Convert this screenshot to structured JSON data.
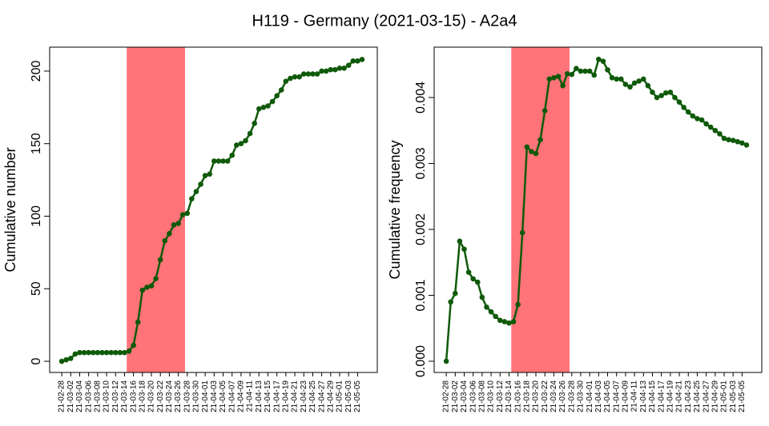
{
  "title": "H119 - Germany (2021-03-15) - A2a4",
  "chart_data": [
    {
      "type": "line",
      "ylabel": "Cumulative number",
      "color": "#0f5a0a",
      "highlight": [
        14.5,
        27.5
      ],
      "highlight_color": "#ff7379",
      "categories": [
        "21-02-28",
        null,
        "21-03-02",
        null,
        "21-03-04",
        null,
        "21-03-06",
        null,
        "21-03-08",
        null,
        "21-03-10",
        null,
        "21-03-12",
        null,
        "21-03-14",
        null,
        "21-03-16",
        null,
        "21-03-18",
        null,
        "21-03-20",
        null,
        "21-03-22",
        null,
        "21-03-24",
        null,
        "21-03-26",
        null,
        "21-03-28",
        null,
        "21-03-30",
        null,
        "21-04-01",
        null,
        "21-04-03",
        null,
        "21-04-05",
        null,
        "21-04-07",
        null,
        "21-04-09",
        null,
        "21-04-11",
        null,
        "21-04-13",
        null,
        "21-04-15",
        null,
        "21-04-17",
        null,
        "21-04-19",
        null,
        "21-04-21",
        null,
        "21-04-23",
        null,
        "21-04-25",
        null,
        "21-04-27",
        null,
        "21-04-29",
        null,
        "21-05-01",
        null,
        "21-05-03",
        null,
        "21-05-05",
        null
      ],
      "values": [
        0,
        1,
        2,
        5,
        6,
        6,
        6,
        6,
        6,
        6,
        6,
        6,
        6,
        6,
        6,
        7,
        11,
        27,
        49,
        51,
        52,
        57,
        70,
        83,
        88,
        94,
        95,
        101,
        102,
        112,
        117,
        122,
        128,
        129,
        138,
        138,
        138,
        138,
        142,
        149,
        150,
        152,
        157,
        164,
        174,
        175,
        176,
        179,
        183,
        187,
        193,
        195,
        196,
        196,
        198,
        198,
        198,
        198,
        200,
        200,
        201,
        201,
        202,
        202,
        204,
        207,
        207,
        208
      ],
      "xlim": [
        -2.7,
        70.4
      ],
      "ylim": [
        -7.7,
        216.5
      ],
      "yticks": [
        0,
        50,
        100,
        150,
        200
      ]
    },
    {
      "type": "line",
      "ylabel": "Cumulative frequency",
      "color": "#0f5a0a",
      "highlight": [
        14.5,
        27.5
      ],
      "highlight_color": "#ff7379",
      "categories": [
        "21-02-28",
        null,
        "21-03-02",
        null,
        "21-03-04",
        null,
        "21-03-06",
        null,
        "21-03-08",
        null,
        "21-03-10",
        null,
        "21-03-12",
        null,
        "21-03-14",
        null,
        "21-03-16",
        null,
        "21-03-18",
        null,
        "21-03-20",
        null,
        "21-03-22",
        null,
        "21-03-24",
        null,
        "21-03-26",
        null,
        "21-03-28",
        null,
        "21-03-30",
        null,
        "21-04-01",
        null,
        "21-04-03",
        null,
        "21-04-05",
        null,
        "21-04-07",
        null,
        "21-04-09",
        null,
        "21-04-11",
        null,
        "21-04-13",
        null,
        "21-04-15",
        null,
        "21-04-17",
        null,
        "21-04-19",
        null,
        "21-04-21",
        null,
        "21-04-23",
        null,
        "21-04-25",
        null,
        "21-04-27",
        null,
        "21-04-29",
        null,
        "21-05-01",
        null,
        "21-05-03",
        null,
        "21-05-05",
        null
      ],
      "values": [
        0,
        0.0009,
        0.00103,
        0.00182,
        0.0017,
        0.00135,
        0.00125,
        0.0012,
        0.00097,
        0.00082,
        0.00075,
        0.00068,
        0.00062,
        0.0006,
        0.00058,
        0.0006,
        0.00086,
        0.00195,
        0.00325,
        0.00318,
        0.00315,
        0.00336,
        0.0038,
        0.00428,
        0.0043,
        0.00432,
        0.00418,
        0.00436,
        0.00435,
        0.00444,
        0.0044,
        0.0044,
        0.0044,
        0.00434,
        0.00458,
        0.00455,
        0.00442,
        0.0043,
        0.00428,
        0.00428,
        0.0042,
        0.00416,
        0.00422,
        0.00425,
        0.00428,
        0.00418,
        0.00408,
        0.004,
        0.00403,
        0.00407,
        0.00408,
        0.004,
        0.00393,
        0.00385,
        0.00378,
        0.00372,
        0.00368,
        0.00366,
        0.0036,
        0.00355,
        0.0035,
        0.00345,
        0.00338,
        0.00336,
        0.00335,
        0.00333,
        0.00331,
        0.00328
      ],
      "xlim": [
        -2.7,
        70.4
      ],
      "ylim": [
        -0.00017,
        0.004764
      ],
      "yticks": [
        {
          "value": 0,
          "label": "0.000"
        },
        {
          "value": 0.001,
          "label": "0.001"
        },
        {
          "value": 0.002,
          "label": "0.002"
        },
        {
          "value": 0.003,
          "label": "0.003"
        },
        {
          "value": 0.004,
          "label": "0.004"
        }
      ]
    }
  ]
}
